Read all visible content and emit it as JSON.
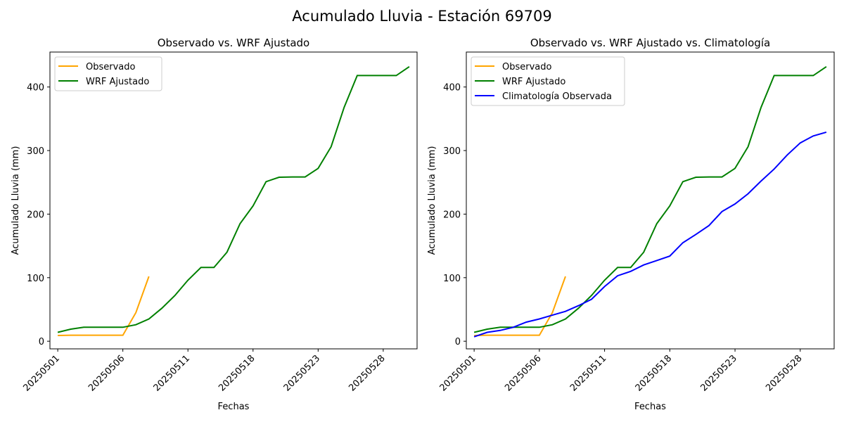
{
  "figure": {
    "suptitle": "Acumulado Lluvia - Estación 69709"
  },
  "chart_data": [
    {
      "type": "line",
      "title": "Observado vs. WRF Ajustado",
      "xlabel": "Fechas",
      "ylabel": "Acumulado Lluvia (mm)",
      "x_tick_labels": [
        "20250501",
        "20250506",
        "20250511",
        "20250518",
        "20250523",
        "20250528"
      ],
      "y_ticks": [
        0,
        100,
        200,
        300,
        400
      ],
      "xlim": [
        -0.6,
        27.6
      ],
      "ylim": [
        -12,
        455
      ],
      "legend": "upper left",
      "series": [
        {
          "name": "Observado",
          "color": "#ffa500",
          "values": [
            9,
            9.5,
            9.5,
            9.5,
            9.5,
            9.5,
            45,
            102
          ]
        },
        {
          "name": "WRF Ajustado",
          "color": "#008000",
          "values": [
            14,
            19,
            22,
            22,
            22,
            22,
            26,
            35,
            52,
            72,
            96,
            116,
            116,
            140,
            185,
            213,
            251,
            258,
            258.5,
            258.5,
            272,
            306,
            368,
            418,
            418,
            418,
            418,
            432
          ]
        }
      ]
    },
    {
      "type": "line",
      "title": "Observado vs. WRF Ajustado vs. Climatología",
      "xlabel": "Fechas",
      "ylabel": "Acumulado Lluvia (mm)",
      "x_tick_labels": [
        "20250501",
        "20250506",
        "20250511",
        "20250518",
        "20250523",
        "20250528"
      ],
      "y_ticks": [
        0,
        100,
        200,
        300,
        400
      ],
      "xlim": [
        -0.6,
        27.6
      ],
      "ylim": [
        -12,
        455
      ],
      "legend": "upper left",
      "series": [
        {
          "name": "Observado",
          "color": "#ffa500",
          "values": [
            9,
            9.5,
            9.5,
            9.5,
            9.5,
            9.5,
            45,
            102
          ]
        },
        {
          "name": "WRF Ajustado",
          "color": "#008000",
          "values": [
            14,
            19,
            22,
            22,
            22,
            22,
            26,
            35,
            52,
            72,
            96,
            116,
            116,
            140,
            185,
            213,
            251,
            258,
            258.5,
            258.5,
            272,
            306,
            368,
            418,
            418,
            418,
            418,
            432
          ]
        },
        {
          "name": "Climatología Observada",
          "color": "#0000ff",
          "values": [
            7,
            14,
            17,
            22,
            30,
            35,
            41,
            47,
            56,
            66,
            86,
            103,
            110,
            120,
            127,
            134,
            155,
            168,
            182,
            204,
            216,
            232,
            252,
            271,
            293,
            312,
            323,
            329
          ]
        }
      ]
    }
  ]
}
